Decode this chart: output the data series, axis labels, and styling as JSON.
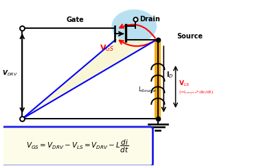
{
  "bg_color": "#ffffff",
  "light_blue_fill": "#b8e0f0",
  "yellow_fill": "#f8f4c8",
  "yellow_bar_color": "#f5a800",
  "blue_border": "#1a1aee",
  "formula_bg": "#fdfce8",
  "vdrv_label": "V$_{DRV}$",
  "gate_label": "Gate",
  "drain_label": "Drain",
  "source_label": "Source",
  "vgs_label": "V$_{GS}$",
  "id_label": "I$_D$",
  "vls_label": "V$_{LS}$",
  "vls_sub": "(=L$_{source}$*dI$_D$/dt)",
  "lsource_label": "L$_{Source}$",
  "formula": "$V_{GS} = V_{DRV} - V_{LS} = V_{DRV} - L\\dfrac{di}{dt}$"
}
